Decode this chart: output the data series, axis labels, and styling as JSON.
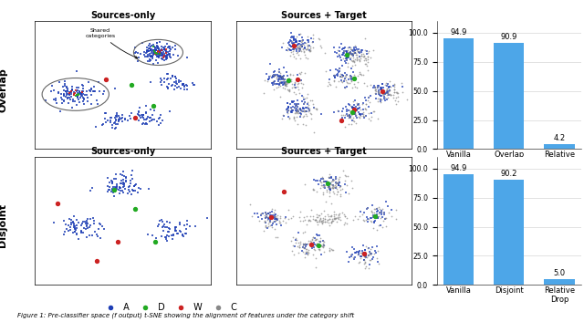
{
  "bar_color": "#4da6e8",
  "overlap_bars": {
    "categories": [
      "Vanilla",
      "Overlap",
      "Relative\nDrop"
    ],
    "values": [
      94.9,
      90.9,
      4.2
    ]
  },
  "disjoint_bars": {
    "categories": [
      "Vanilla",
      "Disjoint",
      "Relative\nDrop"
    ],
    "values": [
      94.9,
      90.2,
      5.0
    ]
  },
  "row_labels": [
    "Overlap",
    "Disjoint"
  ],
  "legend_labels": [
    "A",
    "D",
    "W",
    "C"
  ],
  "legend_colors": [
    "#1e3eb5",
    "#22aa22",
    "#cc2222",
    "#888888"
  ],
  "figure_caption": "Figure 1: Pre-classifier space (f output) t-SNE showing the alignment of features under the category shift",
  "ylim": [
    0,
    110
  ],
  "yticks": [
    0.0,
    25.0,
    50.0,
    75.0,
    100.0
  ]
}
